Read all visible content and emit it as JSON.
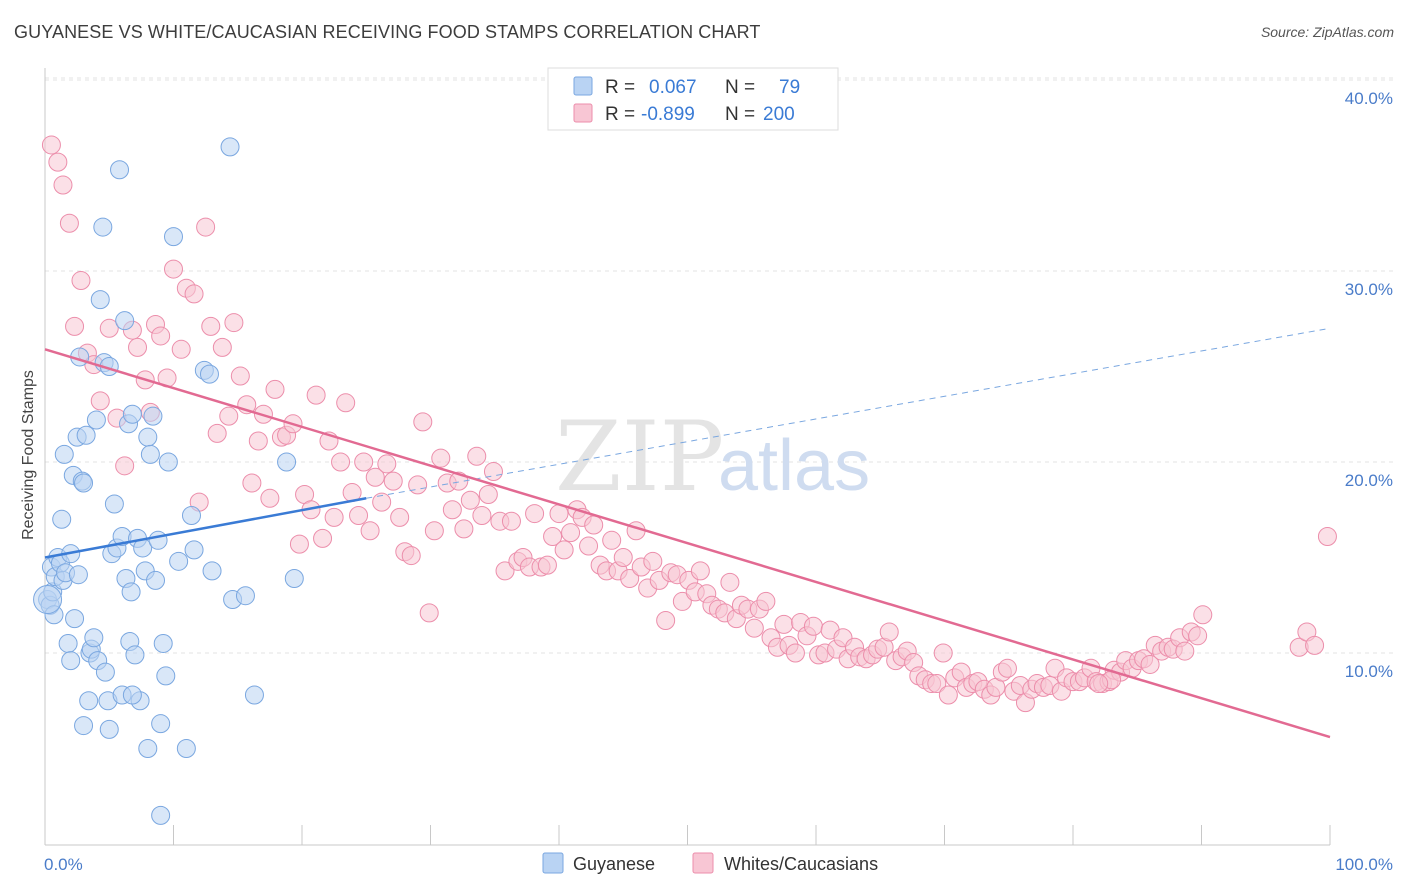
{
  "title": "GUYANESE VS WHITE/CAUCASIAN RECEIVING FOOD STAMPS CORRELATION CHART",
  "source": "Source: ZipAtlas.com",
  "watermark": {
    "zip": "ZIP",
    "atlas": "atlas"
  },
  "legend_box": {
    "rows": [
      {
        "r_label": "R =",
        "r_value": "0.067",
        "n_label": "N =",
        "n_value": "79",
        "color": "#a8c8f0"
      },
      {
        "r_label": "R =",
        "r_value": "-0.899",
        "n_label": "N =",
        "n_value": "200",
        "color": "#f5b6c8"
      }
    ]
  },
  "chart_data": {
    "type": "scatter",
    "title": "GUYANESE VS WHITE/CAUCASIAN RECEIVING FOOD STAMPS CORRELATION CHART",
    "ylabel": "Receiving Food Stamps",
    "xlabel": "",
    "x_tick_labels": [
      "0.0%",
      "100.0%"
    ],
    "y_tick_labels": [
      "10.0%",
      "20.0%",
      "30.0%",
      "40.0%"
    ],
    "y_ticks": [
      10,
      20,
      30,
      40
    ],
    "xlim": [
      0,
      100
    ],
    "ylim": [
      0,
      42
    ],
    "grid": true,
    "series": [
      {
        "name": "Guyanese",
        "color": "#7aa7e0",
        "fill": "#b9d3f3",
        "R": 0.067,
        "N": 79,
        "trend": {
          "x0": 0,
          "y0": 15.0,
          "x1": 25,
          "y1": 18.1,
          "dashed_to_x": 100,
          "dashed_to_y": 27.0,
          "color": "#3a7bd5"
        },
        "points": [
          [
            0.2,
            12.8
          ],
          [
            0.4,
            12.5
          ],
          [
            0.5,
            14.5
          ],
          [
            0.6,
            13.2
          ],
          [
            0.7,
            12.0
          ],
          [
            0.8,
            14.0
          ],
          [
            1.0,
            15.0
          ],
          [
            1.2,
            14.7
          ],
          [
            1.3,
            17.0
          ],
          [
            1.4,
            13.8
          ],
          [
            1.5,
            20.4
          ],
          [
            1.6,
            14.2
          ],
          [
            1.8,
            10.5
          ],
          [
            2.0,
            15.2
          ],
          [
            2.2,
            19.3
          ],
          [
            2.3,
            11.8
          ],
          [
            2.5,
            21.3
          ],
          [
            2.6,
            14.1
          ],
          [
            2.7,
            25.5
          ],
          [
            2.9,
            19.0
          ],
          [
            3.0,
            18.9
          ],
          [
            3.2,
            21.4
          ],
          [
            3.4,
            7.5
          ],
          [
            3.5,
            10.0
          ],
          [
            3.6,
            10.2
          ],
          [
            3.8,
            10.8
          ],
          [
            4.0,
            22.2
          ],
          [
            4.1,
            9.6
          ],
          [
            4.3,
            28.5
          ],
          [
            4.5,
            32.3
          ],
          [
            4.6,
            25.2
          ],
          [
            4.7,
            9.0
          ],
          [
            4.9,
            7.5
          ],
          [
            5.0,
            25.0
          ],
          [
            5.2,
            15.2
          ],
          [
            5.4,
            17.8
          ],
          [
            5.6,
            15.5
          ],
          [
            5.8,
            35.3
          ],
          [
            6.0,
            16.1
          ],
          [
            6.2,
            27.4
          ],
          [
            6.3,
            13.9
          ],
          [
            6.5,
            22.0
          ],
          [
            6.6,
            10.6
          ],
          [
            6.7,
            13.2
          ],
          [
            6.8,
            22.5
          ],
          [
            7.0,
            9.9
          ],
          [
            7.2,
            16.0
          ],
          [
            7.4,
            7.5
          ],
          [
            7.6,
            15.5
          ],
          [
            7.8,
            14.3
          ],
          [
            8.0,
            21.3
          ],
          [
            8.2,
            20.4
          ],
          [
            8.4,
            22.4
          ],
          [
            8.6,
            13.8
          ],
          [
            8.8,
            15.9
          ],
          [
            9.0,
            6.3
          ],
          [
            9.2,
            10.5
          ],
          [
            9.4,
            8.8
          ],
          [
            9.6,
            20.0
          ],
          [
            10.0,
            31.8
          ],
          [
            10.4,
            14.8
          ],
          [
            11.0,
            5.0
          ],
          [
            11.4,
            17.2
          ],
          [
            11.6,
            15.4
          ],
          [
            12.4,
            24.8
          ],
          [
            12.8,
            24.6
          ],
          [
            13.0,
            14.3
          ],
          [
            14.4,
            36.5
          ],
          [
            14.6,
            12.8
          ],
          [
            15.6,
            13.0
          ],
          [
            16.3,
            7.8
          ],
          [
            18.8,
            20.0
          ],
          [
            19.4,
            13.9
          ],
          [
            3.0,
            6.2
          ],
          [
            5.0,
            6.0
          ],
          [
            8.0,
            5.0
          ],
          [
            9.0,
            1.5
          ],
          [
            2.0,
            9.6
          ],
          [
            6.0,
            7.8
          ],
          [
            6.8,
            7.8
          ]
        ]
      },
      {
        "name": "Whites/Caucasians",
        "color": "#ec8eab",
        "fill": "#f8c6d4",
        "R": -0.899,
        "N": 200,
        "trend": {
          "x0": 0,
          "y0": 25.9,
          "x1": 100,
          "y1": 5.6,
          "color": "#e26a92"
        },
        "points": [
          [
            0.5,
            36.6
          ],
          [
            1.0,
            35.7
          ],
          [
            1.4,
            34.5
          ],
          [
            1.9,
            32.5
          ],
          [
            2.3,
            27.1
          ],
          [
            2.8,
            29.5
          ],
          [
            3.3,
            25.7
          ],
          [
            3.8,
            25.1
          ],
          [
            4.3,
            23.2
          ],
          [
            5.0,
            27.0
          ],
          [
            5.6,
            22.3
          ],
          [
            6.2,
            19.8
          ],
          [
            6.8,
            26.9
          ],
          [
            7.2,
            26.0
          ],
          [
            7.8,
            24.3
          ],
          [
            8.2,
            22.6
          ],
          [
            8.6,
            27.2
          ],
          [
            9.0,
            26.6
          ],
          [
            9.5,
            24.4
          ],
          [
            10.0,
            30.1
          ],
          [
            10.6,
            25.9
          ],
          [
            11.0,
            29.1
          ],
          [
            11.6,
            28.8
          ],
          [
            12.0,
            17.9
          ],
          [
            12.5,
            32.3
          ],
          [
            12.9,
            27.1
          ],
          [
            13.4,
            21.5
          ],
          [
            13.8,
            26.0
          ],
          [
            14.3,
            22.4
          ],
          [
            14.7,
            27.3
          ],
          [
            15.2,
            24.5
          ],
          [
            15.7,
            23.0
          ],
          [
            16.1,
            18.9
          ],
          [
            16.6,
            21.1
          ],
          [
            17.0,
            22.5
          ],
          [
            17.5,
            18.1
          ],
          [
            17.9,
            23.8
          ],
          [
            18.4,
            21.3
          ],
          [
            18.8,
            21.4
          ],
          [
            19.3,
            22.0
          ],
          [
            19.8,
            15.7
          ],
          [
            20.2,
            18.3
          ],
          [
            20.7,
            17.5
          ],
          [
            21.1,
            23.5
          ],
          [
            21.6,
            16.0
          ],
          [
            22.1,
            21.1
          ],
          [
            22.5,
            17.1
          ],
          [
            23.0,
            20.0
          ],
          [
            23.4,
            23.1
          ],
          [
            23.9,
            18.4
          ],
          [
            24.4,
            17.2
          ],
          [
            24.8,
            20.0
          ],
          [
            25.3,
            16.4
          ],
          [
            25.7,
            19.2
          ],
          [
            26.2,
            17.9
          ],
          [
            26.6,
            19.9
          ],
          [
            27.1,
            19.0
          ],
          [
            27.6,
            17.1
          ],
          [
            28.0,
            15.3
          ],
          [
            28.5,
            15.1
          ],
          [
            29.0,
            18.8
          ],
          [
            29.4,
            22.1
          ],
          [
            29.9,
            12.1
          ],
          [
            30.3,
            16.4
          ],
          [
            30.8,
            20.2
          ],
          [
            31.3,
            18.9
          ],
          [
            31.7,
            17.5
          ],
          [
            32.2,
            19.0
          ],
          [
            32.6,
            16.5
          ],
          [
            33.1,
            18.0
          ],
          [
            33.6,
            20.3
          ],
          [
            34.0,
            17.2
          ],
          [
            34.5,
            18.3
          ],
          [
            34.9,
            19.5
          ],
          [
            35.4,
            16.9
          ],
          [
            35.8,
            14.3
          ],
          [
            36.3,
            16.9
          ],
          [
            36.8,
            14.8
          ],
          [
            37.2,
            15.0
          ],
          [
            37.7,
            14.5
          ],
          [
            38.1,
            17.3
          ],
          [
            38.6,
            14.5
          ],
          [
            39.1,
            14.6
          ],
          [
            39.5,
            16.1
          ],
          [
            40.0,
            17.3
          ],
          [
            40.4,
            15.4
          ],
          [
            40.9,
            16.3
          ],
          [
            41.4,
            17.5
          ],
          [
            41.8,
            17.1
          ],
          [
            42.3,
            15.6
          ],
          [
            42.7,
            16.7
          ],
          [
            43.2,
            14.6
          ],
          [
            43.7,
            14.3
          ],
          [
            44.1,
            15.9
          ],
          [
            44.6,
            14.3
          ],
          [
            45.0,
            15.0
          ],
          [
            45.5,
            13.9
          ],
          [
            46.0,
            16.4
          ],
          [
            46.4,
            14.5
          ],
          [
            46.9,
            13.4
          ],
          [
            47.3,
            14.8
          ],
          [
            47.8,
            13.8
          ],
          [
            48.3,
            11.7
          ],
          [
            48.7,
            14.2
          ],
          [
            49.2,
            14.1
          ],
          [
            49.6,
            12.7
          ],
          [
            50.1,
            13.8
          ],
          [
            50.6,
            13.2
          ],
          [
            51.0,
            14.3
          ],
          [
            51.5,
            13.1
          ],
          [
            51.9,
            12.5
          ],
          [
            52.4,
            12.3
          ],
          [
            52.9,
            12.1
          ],
          [
            53.3,
            13.7
          ],
          [
            53.8,
            11.8
          ],
          [
            54.2,
            12.5
          ],
          [
            54.7,
            12.3
          ],
          [
            55.2,
            11.3
          ],
          [
            55.6,
            12.3
          ],
          [
            56.1,
            12.7
          ],
          [
            56.5,
            10.8
          ],
          [
            57.0,
            10.3
          ],
          [
            57.5,
            11.5
          ],
          [
            57.9,
            10.4
          ],
          [
            58.4,
            10.0
          ],
          [
            58.8,
            11.6
          ],
          [
            59.3,
            10.9
          ],
          [
            59.8,
            11.4
          ],
          [
            60.2,
            9.9
          ],
          [
            60.7,
            10.0
          ],
          [
            61.1,
            11.2
          ],
          [
            61.6,
            10.2
          ],
          [
            62.1,
            10.8
          ],
          [
            62.5,
            9.7
          ],
          [
            63.0,
            10.3
          ],
          [
            63.4,
            9.8
          ],
          [
            63.9,
            9.7
          ],
          [
            64.4,
            9.9
          ],
          [
            64.8,
            10.2
          ],
          [
            65.3,
            10.3
          ],
          [
            65.7,
            11.1
          ],
          [
            66.2,
            9.6
          ],
          [
            66.7,
            9.8
          ],
          [
            67.1,
            10.1
          ],
          [
            67.6,
            9.5
          ],
          [
            68.0,
            8.8
          ],
          [
            68.5,
            8.6
          ],
          [
            69.0,
            8.4
          ],
          [
            69.4,
            8.4
          ],
          [
            69.9,
            10.0
          ],
          [
            70.3,
            7.8
          ],
          [
            70.8,
            8.7
          ],
          [
            71.3,
            9.0
          ],
          [
            71.7,
            8.2
          ],
          [
            72.2,
            8.4
          ],
          [
            72.6,
            8.5
          ],
          [
            73.1,
            8.1
          ],
          [
            73.6,
            7.8
          ],
          [
            74.0,
            8.2
          ],
          [
            74.5,
            9.0
          ],
          [
            74.9,
            9.2
          ],
          [
            75.4,
            8.0
          ],
          [
            75.9,
            8.3
          ],
          [
            76.3,
            7.4
          ],
          [
            76.8,
            8.1
          ],
          [
            77.2,
            8.4
          ],
          [
            77.7,
            8.2
          ],
          [
            78.2,
            8.3
          ],
          [
            78.6,
            9.2
          ],
          [
            79.1,
            8.0
          ],
          [
            79.5,
            8.7
          ],
          [
            80.0,
            8.5
          ],
          [
            80.5,
            8.5
          ],
          [
            80.9,
            8.7
          ],
          [
            81.4,
            9.2
          ],
          [
            81.8,
            8.5
          ],
          [
            82.3,
            8.4
          ],
          [
            82.8,
            8.5
          ],
          [
            83.2,
            9.1
          ],
          [
            83.7,
            9.0
          ],
          [
            84.1,
            9.6
          ],
          [
            84.6,
            9.2
          ],
          [
            85.1,
            9.6
          ],
          [
            85.5,
            9.7
          ],
          [
            86.0,
            9.4
          ],
          [
            86.4,
            10.4
          ],
          [
            86.9,
            10.1
          ],
          [
            87.4,
            10.3
          ],
          [
            87.8,
            10.2
          ],
          [
            88.3,
            10.8
          ],
          [
            88.7,
            10.1
          ],
          [
            89.2,
            11.1
          ],
          [
            89.7,
            10.9
          ],
          [
            90.1,
            12.0
          ],
          [
            99.8,
            16.1
          ],
          [
            97.6,
            10.3
          ],
          [
            98.2,
            11.1
          ],
          [
            98.8,
            10.4
          ],
          [
            83.0,
            8.6
          ],
          [
            82.0,
            8.4
          ]
        ]
      }
    ]
  },
  "bottom_legend": [
    {
      "label": "Guyanese",
      "color": "#b9d3f3",
      "border": "#7aa7e0"
    },
    {
      "label": "Whites/Caucasians",
      "color": "#f8c6d4",
      "border": "#ec8eab"
    }
  ]
}
